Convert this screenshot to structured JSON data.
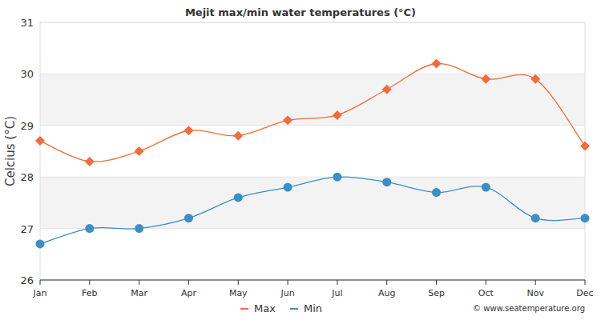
{
  "chart_data": {
    "type": "line",
    "title": "Mejit max/min water temperatures (°C)",
    "y_label": "Celcius (°C)",
    "source": "© www.seatemperature.org",
    "categories": [
      "Jan",
      "Feb",
      "Mar",
      "Apr",
      "May",
      "Jun",
      "Jul",
      "Aug",
      "Sep",
      "Oct",
      "Nov",
      "Dec"
    ],
    "series": [
      {
        "name": "Max",
        "color": "#f26b3a",
        "marker": "diamond",
        "values": [
          28.7,
          28.3,
          28.5,
          28.9,
          28.8,
          29.1,
          29.2,
          29.7,
          30.2,
          29.9,
          29.9,
          28.6
        ]
      },
      {
        "name": "Min",
        "color": "#3a8fc6",
        "marker": "circle",
        "values": [
          26.7,
          27.0,
          27.0,
          27.2,
          27.6,
          27.8,
          28.0,
          27.9,
          27.7,
          27.8,
          27.2,
          27.2
        ]
      }
    ],
    "ylim": [
      26,
      31
    ],
    "yticks": [
      26,
      27,
      28,
      29,
      30,
      31
    ],
    "grid": true,
    "legend": "bottom"
  }
}
